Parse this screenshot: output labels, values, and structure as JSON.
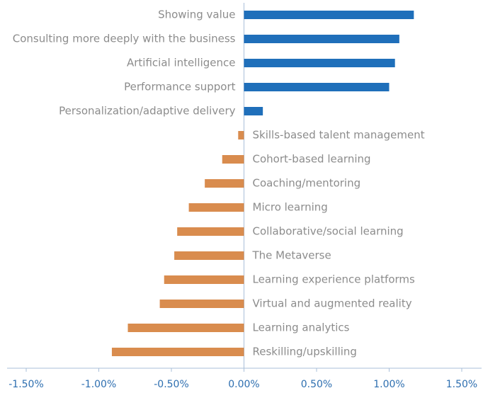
{
  "chart_data": {
    "type": "hbar",
    "categories": [
      "Showing value",
      "Consulting more deeply with the business",
      "Artificial intelligence",
      "Performance support",
      "Personalization/adaptive delivery",
      "Skills-based talent management",
      "Cohort-based learning",
      "Coaching/mentoring",
      "Micro learning",
      "Collaborative/social learning",
      "The Metaverse",
      "Learning experience platforms",
      "Virtual and augmented reality",
      "Learning analytics",
      "Reskilling/upskilling"
    ],
    "values": [
      1.17,
      1.07,
      1.04,
      1.0,
      0.13,
      -0.04,
      -0.15,
      -0.27,
      -0.38,
      -0.46,
      -0.48,
      -0.55,
      -0.58,
      -0.8,
      -0.91
    ],
    "positive_color": "#1f6fba",
    "negative_color": "#d98c4e",
    "xlim": [
      -1.5,
      1.5
    ],
    "xticks": [
      {
        "value": -1.5,
        "label": "-1.50%"
      },
      {
        "value": -1.0,
        "label": "-1.00%"
      },
      {
        "value": -0.5,
        "label": "-0.50%"
      },
      {
        "value": 0,
        "label": "0.00%"
      },
      {
        "value": 0.5,
        "label": "0.50%"
      },
      {
        "value": 1.0,
        "label": "1.00%"
      },
      {
        "value": 1.5,
        "label": "1.50%"
      }
    ]
  }
}
